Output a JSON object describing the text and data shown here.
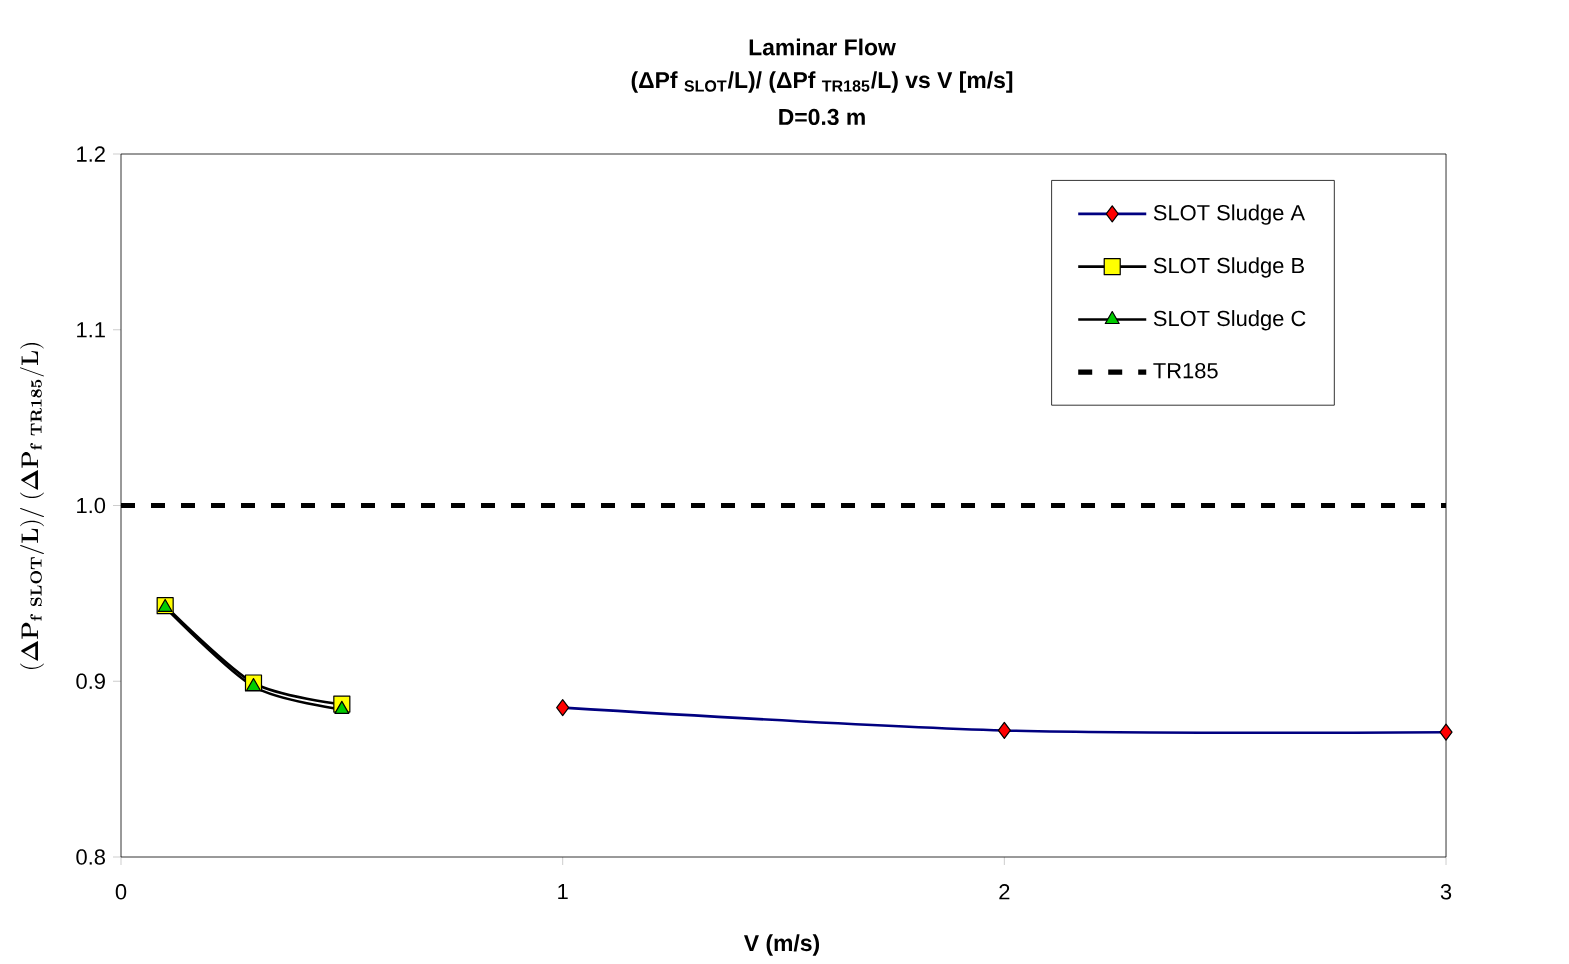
{
  "chart_data": {
    "type": "line",
    "title": "Laminar Flow",
    "subtitle": "(ΔPf $_{SLOT}$/L)/ (ΔPf $_{TR185}$/L) vs V [m/s]",
    "annotations": [
      "D=0.3 m"
    ],
    "xlabel": "V (m/s)",
    "ylabel": "\\mathbf{(\\Delta P_{f\\ SLOT}/L)/\\ (\\Delta P_{f\\ TR185}/L)}",
    "xlim": [
      0,
      3
    ],
    "xticks": [
      0,
      1,
      2,
      3
    ],
    "ylim": [
      0.8,
      1.2
    ],
    "yticks": [
      {
        "value": 0.8,
        "label": "0.8"
      },
      {
        "value": 0.9,
        "label": "0.9"
      },
      {
        "value": 1.0,
        "label": "1.0"
      },
      {
        "value": 1.1,
        "label": "1.1"
      },
      {
        "value": 1.2,
        "label": "1.2"
      }
    ],
    "grid": false,
    "legend": "top right",
    "series": [
      {
        "name": "SLOT Sludge A",
        "color": "#000080",
        "colors": [
          "#ff0000",
          "#ff0000",
          "#ff0000"
        ],
        "marker": "diamond",
        "line_style": "solid",
        "x": [
          1,
          2,
          3
        ],
        "values": [
          0.885,
          0.872,
          0.871
        ]
      },
      {
        "name": "SLOT Sludge B",
        "color": "#000000",
        "colors": [
          "#ffff00",
          "#ffff00",
          "#ffff00"
        ],
        "marker": "square",
        "line_style": "solid",
        "x": [
          0.1,
          0.3,
          0.5
        ],
        "values": [
          0.943,
          0.899,
          0.887
        ]
      },
      {
        "name": "SLOT Sludge C",
        "color": "#000000",
        "colors": [
          "#00cc00",
          "#00cc00",
          "#00cc00"
        ],
        "marker": "triangle",
        "line_style": "solid",
        "x": [
          0.1,
          0.3,
          0.5
        ],
        "values": [
          0.942,
          0.897,
          0.884
        ]
      },
      {
        "name": "TR185",
        "color": "#000000",
        "marker": "none",
        "line_style": "dashed",
        "x": [
          0,
          3
        ],
        "values": [
          1,
          1
        ]
      }
    ]
  }
}
